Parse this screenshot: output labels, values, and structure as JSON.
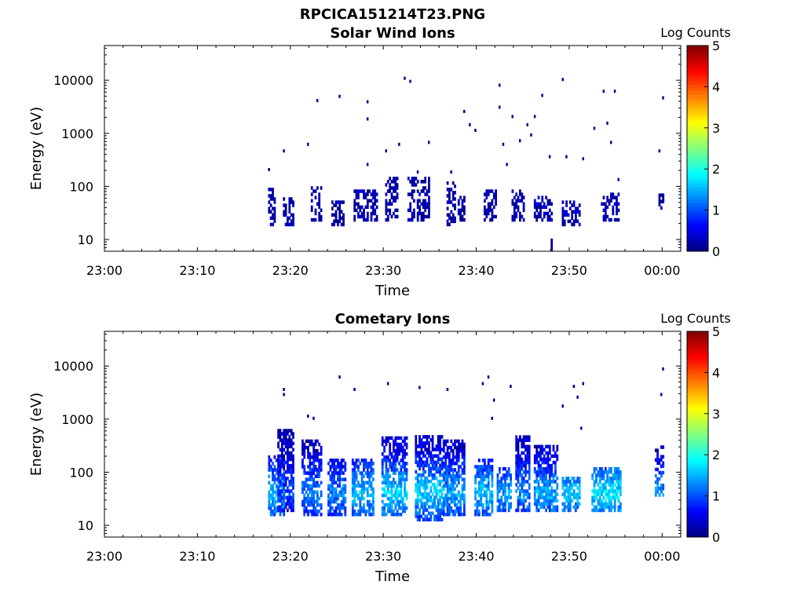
{
  "figure": {
    "filename_title": "RPCICA151214T23.PNG"
  },
  "chart_data": [
    {
      "type": "heatmap",
      "title": "Solar Wind Ions",
      "xlabel": "Time",
      "ylabel": "Energy (eV)",
      "x_ticks": [
        "23:00",
        "23:10",
        "23:20",
        "23:30",
        "23:40",
        "23:50",
        "00:00"
      ],
      "x_range_minutes": [
        0,
        62
      ],
      "y_scale": "log",
      "y_ticks": [
        "10",
        "100",
        "1000",
        "10000"
      ],
      "y_range": [
        6,
        45000
      ],
      "colorbar": {
        "title": "Log Counts",
        "ticks": [
          "0",
          "1",
          "2",
          "3",
          "4",
          "5"
        ],
        "range": [
          0,
          5
        ],
        "colormap": "jet"
      },
      "clusters": [
        {
          "t0": 17.6,
          "t1": 18.4,
          "e0": 18,
          "e1": 90,
          "v": 0.15
        },
        {
          "t0": 19.2,
          "t1": 20.2,
          "e0": 18,
          "e1": 60,
          "v": 0.15
        },
        {
          "t0": 22.2,
          "t1": 23.2,
          "e0": 22,
          "e1": 100,
          "v": 0.2
        },
        {
          "t0": 24.4,
          "t1": 25.6,
          "e0": 18,
          "e1": 50,
          "v": 0.1
        },
        {
          "t0": 26.8,
          "t1": 29.2,
          "e0": 22,
          "e1": 80,
          "v": 0.2
        },
        {
          "t0": 30.2,
          "t1": 31.4,
          "e0": 22,
          "e1": 150,
          "v": 0.15
        },
        {
          "t0": 32.6,
          "t1": 35.0,
          "e0": 22,
          "e1": 140,
          "v": 0.2
        },
        {
          "t0": 36.8,
          "t1": 37.8,
          "e0": 18,
          "e1": 110,
          "v": 0.15
        },
        {
          "t0": 38.0,
          "t1": 38.8,
          "e0": 22,
          "e1": 60,
          "v": 0.1
        },
        {
          "t0": 40.8,
          "t1": 42.2,
          "e0": 22,
          "e1": 80,
          "v": 0.2
        },
        {
          "t0": 43.8,
          "t1": 45.2,
          "e0": 22,
          "e1": 80,
          "v": 0.2
        },
        {
          "t0": 46.2,
          "t1": 48.2,
          "e0": 22,
          "e1": 60,
          "v": 0.25
        },
        {
          "t0": 49.2,
          "t1": 51.2,
          "e0": 18,
          "e1": 50,
          "v": 0.2
        },
        {
          "t0": 53.4,
          "t1": 55.4,
          "e0": 22,
          "e1": 70,
          "v": 0.25
        },
        {
          "t0": 59.6,
          "t1": 60.2,
          "e0": 28,
          "e1": 70,
          "v": 0.1
        },
        {
          "t0": 48.0,
          "t1": 48.2,
          "e0": 6,
          "e1": 10,
          "v": 0.1
        }
      ],
      "sparse": [
        {
          "t": 17.6,
          "e": 200
        },
        {
          "t": 19.2,
          "e": 450
        },
        {
          "t": 21.8,
          "e": 600
        },
        {
          "t": 22.8,
          "e": 4000
        },
        {
          "t": 25.2,
          "e": 4800
        },
        {
          "t": 28.2,
          "e": 3800
        },
        {
          "t": 28.2,
          "e": 1800
        },
        {
          "t": 28.2,
          "e": 250
        },
        {
          "t": 30.2,
          "e": 450
        },
        {
          "t": 31.6,
          "e": 600
        },
        {
          "t": 32.2,
          "e": 10500
        },
        {
          "t": 32.8,
          "e": 9200
        },
        {
          "t": 33.6,
          "e": 180
        },
        {
          "t": 34.8,
          "e": 650
        },
        {
          "t": 37.2,
          "e": 180
        },
        {
          "t": 38.6,
          "e": 2500
        },
        {
          "t": 39.2,
          "e": 1400
        },
        {
          "t": 39.8,
          "e": 1100
        },
        {
          "t": 42.4,
          "e": 7800
        },
        {
          "t": 42.4,
          "e": 3000
        },
        {
          "t": 42.8,
          "e": 600
        },
        {
          "t": 43.2,
          "e": 250
        },
        {
          "t": 43.8,
          "e": 2000
        },
        {
          "t": 44.6,
          "e": 700
        },
        {
          "t": 45.4,
          "e": 1400
        },
        {
          "t": 45.8,
          "e": 900
        },
        {
          "t": 46.2,
          "e": 2000
        },
        {
          "t": 47.0,
          "e": 5000
        },
        {
          "t": 47.8,
          "e": 350
        },
        {
          "t": 49.6,
          "e": 350
        },
        {
          "t": 49.2,
          "e": 10000
        },
        {
          "t": 51.4,
          "e": 320
        },
        {
          "t": 52.6,
          "e": 1200
        },
        {
          "t": 53.6,
          "e": 6000
        },
        {
          "t": 54.8,
          "e": 6000
        },
        {
          "t": 54.0,
          "e": 1500
        },
        {
          "t": 54.4,
          "e": 650
        },
        {
          "t": 55.2,
          "e": 130
        },
        {
          "t": 59.6,
          "e": 450
        },
        {
          "t": 60.0,
          "e": 4500
        }
      ]
    },
    {
      "type": "heatmap",
      "title": "Cometary Ions",
      "xlabel": "Time",
      "ylabel": "Energy (eV)",
      "x_ticks": [
        "23:00",
        "23:10",
        "23:20",
        "23:30",
        "23:40",
        "23:50",
        "00:00"
      ],
      "x_range_minutes": [
        0,
        62
      ],
      "y_scale": "log",
      "y_ticks": [
        "10",
        "100",
        "1000",
        "10000"
      ],
      "y_range": [
        6,
        45000
      ],
      "colorbar": {
        "title": "Log Counts",
        "ticks": [
          "0",
          "1",
          "2",
          "3",
          "4",
          "5"
        ],
        "range": [
          0,
          5
        ],
        "colormap": "jet"
      },
      "clusters": [
        {
          "t0": 17.6,
          "t1": 19.2,
          "e0": 15,
          "e1": 200,
          "v": 1.6
        },
        {
          "t0": 18.6,
          "t1": 20.2,
          "e0": 18,
          "e1": 600,
          "v": 1.0
        },
        {
          "t0": 21.2,
          "t1": 23.2,
          "e0": 15,
          "e1": 400,
          "v": 1.3
        },
        {
          "t0": 24.0,
          "t1": 25.8,
          "e0": 15,
          "e1": 180,
          "v": 1.3
        },
        {
          "t0": 26.6,
          "t1": 28.8,
          "e0": 15,
          "e1": 180,
          "v": 1.6
        },
        {
          "t0": 29.8,
          "t1": 32.6,
          "e0": 15,
          "e1": 450,
          "v": 1.7
        },
        {
          "t0": 33.4,
          "t1": 36.4,
          "e0": 12,
          "e1": 450,
          "v": 1.7
        },
        {
          "t0": 36.4,
          "t1": 38.8,
          "e0": 15,
          "e1": 400,
          "v": 1.5
        },
        {
          "t0": 39.8,
          "t1": 41.8,
          "e0": 15,
          "e1": 180,
          "v": 1.6
        },
        {
          "t0": 42.2,
          "t1": 43.8,
          "e0": 18,
          "e1": 120,
          "v": 1.4
        },
        {
          "t0": 44.2,
          "t1": 45.8,
          "e0": 18,
          "e1": 450,
          "v": 1.3
        },
        {
          "t0": 46.2,
          "t1": 48.8,
          "e0": 18,
          "e1": 300,
          "v": 1.5
        },
        {
          "t0": 49.2,
          "t1": 51.2,
          "e0": 18,
          "e1": 80,
          "v": 1.6
        },
        {
          "t0": 52.4,
          "t1": 55.6,
          "e0": 18,
          "e1": 120,
          "v": 1.8
        },
        {
          "t0": 59.2,
          "t1": 60.2,
          "e0": 35,
          "e1": 300,
          "v": 1.4
        }
      ],
      "sparse": [
        {
          "t": 19.2,
          "e": 3500
        },
        {
          "t": 19.2,
          "e": 2800
        },
        {
          "t": 21.8,
          "e": 1100
        },
        {
          "t": 22.4,
          "e": 1000
        },
        {
          "t": 25.2,
          "e": 6000
        },
        {
          "t": 26.8,
          "e": 3500
        },
        {
          "t": 30.4,
          "e": 4500
        },
        {
          "t": 33.8,
          "e": 3800
        },
        {
          "t": 36.8,
          "e": 3500
        },
        {
          "t": 40.6,
          "e": 4500
        },
        {
          "t": 41.2,
          "e": 6000
        },
        {
          "t": 41.8,
          "e": 2200
        },
        {
          "t": 41.6,
          "e": 1000
        },
        {
          "t": 43.6,
          "e": 4000
        },
        {
          "t": 49.2,
          "e": 1700
        },
        {
          "t": 50.4,
          "e": 4000
        },
        {
          "t": 50.8,
          "e": 2500
        },
        {
          "t": 51.4,
          "e": 4500
        },
        {
          "t": 51.2,
          "e": 650
        },
        {
          "t": 59.8,
          "e": 2800
        },
        {
          "t": 60.0,
          "e": 8500
        }
      ]
    }
  ]
}
